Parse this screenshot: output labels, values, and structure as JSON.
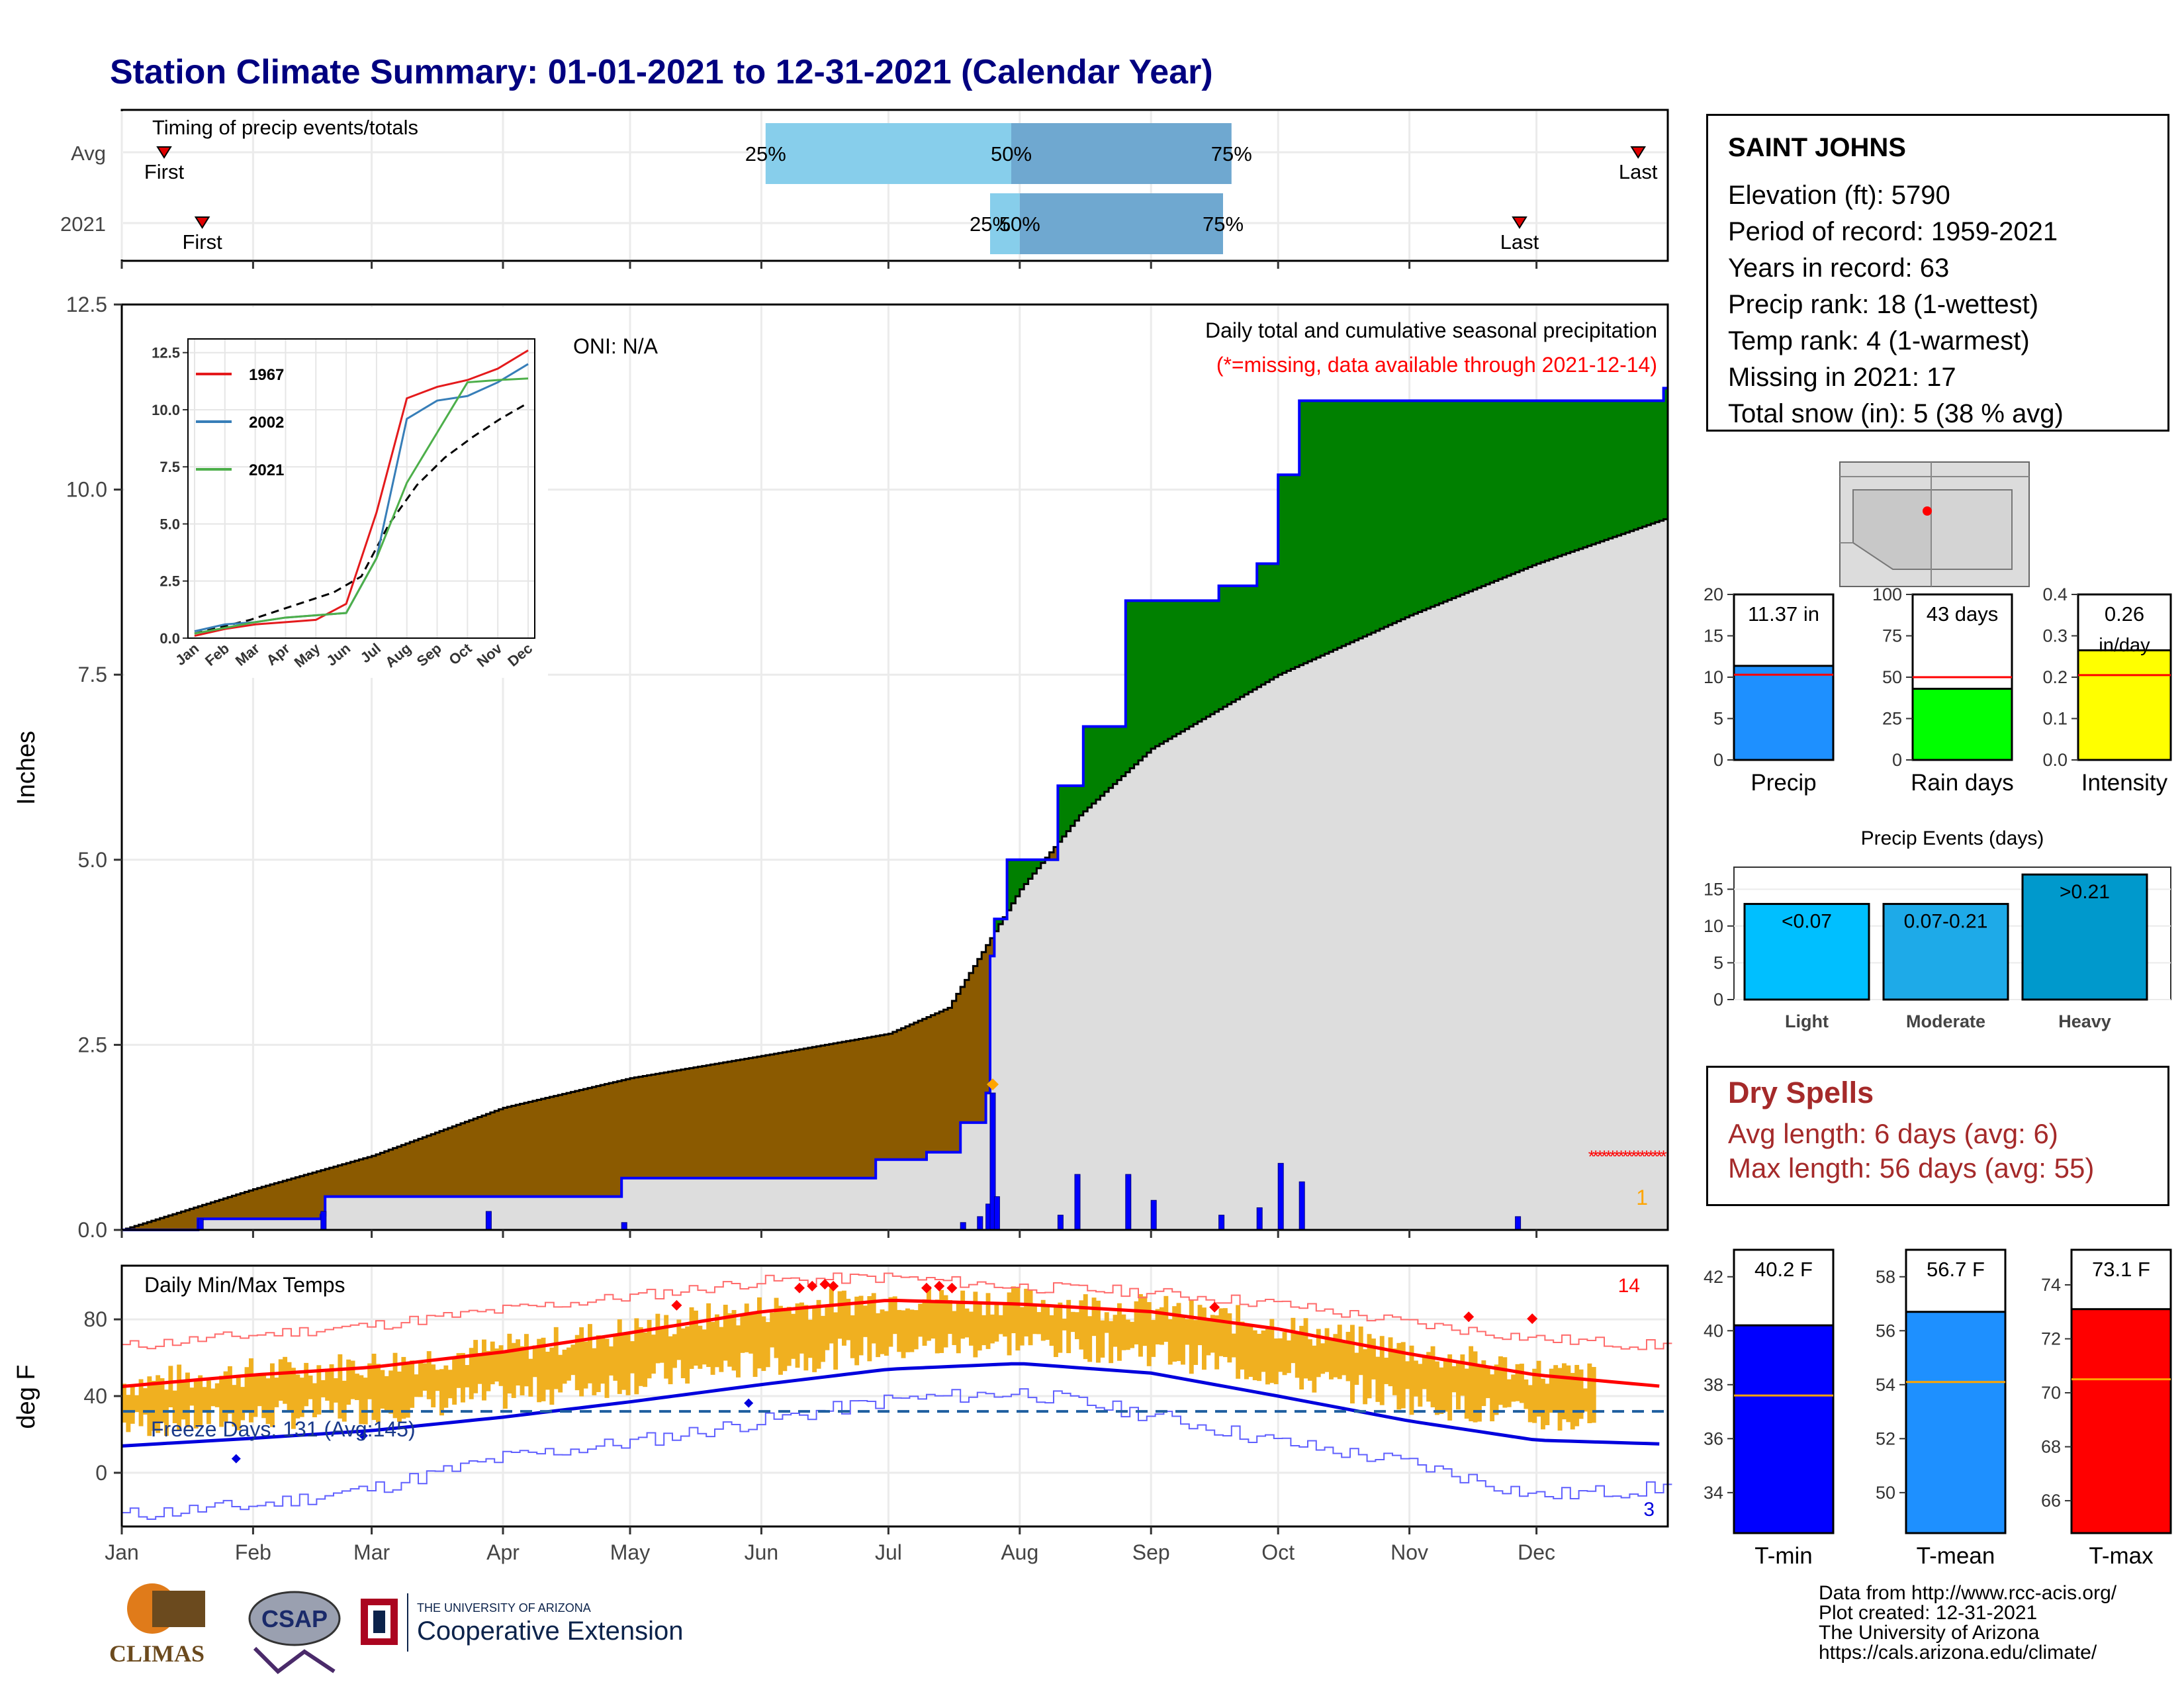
{
  "title": "Station Climate Summary: 01-01-2021 to 12-31-2021 (Calendar Year)",
  "colors": {
    "title": "#000080",
    "cum_2021": "#0000ff",
    "cum_avg_fill": "#dddddd",
    "surplus": "#008000",
    "deficit": "#8b5a00",
    "temp_bars": "#f0b020",
    "tmax_normal": "#ff0000",
    "tmin_normal": "#0000dd"
  },
  "timing": {
    "title": "Timing of precip events/totals",
    "rows": [
      "Avg",
      "2021"
    ],
    "first_label": "First",
    "last_label": "Last",
    "avg": {
      "first_doy": 10,
      "last_doy": 358,
      "p25_doy": 152,
      "p50_doy": 210,
      "p75_doy": 262
    },
    "y2021": {
      "first_doy": 19,
      "last_doy": 330,
      "p25_doy": 205,
      "p50_doy": 212,
      "p75_doy": 260
    },
    "labels": {
      "p25": "25%",
      "p50": "50%",
      "p75": "75%"
    }
  },
  "precip_chart": {
    "ylabel": "Inches",
    "ylim": [
      0,
      12.5
    ],
    "yticks": [
      "0.0",
      "2.5",
      "5.0",
      "7.5",
      "10.0",
      "12.5"
    ],
    "oni": "ONI: N/A",
    "subtitle": "Daily total and cumulative seasonal precipitation",
    "missing_note": "(*=missing, data available through 2021-12-14)",
    "missing_count": "1"
  },
  "inset": {
    "yticks": [
      "0.0",
      "2.5",
      "5.0",
      "7.5",
      "10.0",
      "12.5"
    ],
    "months": [
      "Jan",
      "Feb",
      "Mar",
      "Apr",
      "May",
      "Jun",
      "Jul",
      "Aug",
      "Sep",
      "Oct",
      "Nov",
      "Dec"
    ],
    "legend": [
      "1967",
      "2002",
      "2021"
    ]
  },
  "temp_chart": {
    "ylabel": "deg F",
    "title": "Daily Min/Max Temps",
    "yticks": [
      "0",
      "40",
      "80"
    ],
    "freeze_label": "Freeze Days: 131 (Avg:145)",
    "max_records": "14",
    "min_records": "3"
  },
  "months": [
    "Jan",
    "Feb",
    "Mar",
    "Apr",
    "May",
    "Jun",
    "Jul",
    "Aug",
    "Sep",
    "Oct",
    "Nov",
    "Dec"
  ],
  "station": {
    "name": "SAINT JOHNS",
    "lines": [
      "Elevation (ft): 5790",
      "Period of record: 1959-2021",
      "Years in record: 63",
      "Precip rank: 18 (1-wettest)",
      "Temp rank: 4 (1-warmest)",
      "Missing in 2021: 17",
      "Total snow (in): 5 (38 % avg)"
    ]
  },
  "gauges": {
    "precip": {
      "label": "Precip",
      "value_text": "11.37 in",
      "value": 11.37,
      "avg": 10.3,
      "ylim": [
        0,
        20
      ],
      "ticks": [
        "0",
        "5",
        "10",
        "15",
        "20"
      ],
      "color": "#1e90ff"
    },
    "raindays": {
      "label": "Rain days",
      "value_text": "43 days",
      "value": 43,
      "avg": 50,
      "ylim": [
        0,
        100
      ],
      "ticks": [
        "0",
        "25",
        "50",
        "75",
        "100"
      ],
      "color": "#00ff00"
    },
    "intensity": {
      "label": "Intensity",
      "value_text": "0.26",
      "unit_text": "in/day",
      "value": 0.265,
      "avg": 0.205,
      "ylim": [
        0,
        0.4
      ],
      "ticks": [
        "0.0",
        "0.1",
        "0.2",
        "0.3",
        "0.4"
      ],
      "color": "#ffff00"
    }
  },
  "events": {
    "title": "Precip Events (days)",
    "ticks": [
      "0",
      "5",
      "10",
      "15"
    ],
    "ylim": [
      0,
      18
    ],
    "bars": [
      {
        "name": "Light",
        "label": "<0.07",
        "value": 13,
        "color": "#00bfff"
      },
      {
        "name": "Moderate",
        "label": "0.07-0.21",
        "value": 13,
        "color": "#1eaae8"
      },
      {
        "name": "Heavy",
        "label": ">0.21",
        "value": 17,
        "color": "#0099cc"
      }
    ]
  },
  "dry_spells": {
    "title": "Dry Spells",
    "avg_length": "Avg length: 6 days (avg: 6)",
    "max_length": "Max length: 56 days (avg: 55)"
  },
  "temp_gauges": {
    "tmin": {
      "label": "T-min",
      "value_text": "40.2 F",
      "value": 40.2,
      "avg": 37.6,
      "ylim": [
        32.5,
        43
      ],
      "ticks": [
        "34",
        "36",
        "38",
        "40",
        "42"
      ],
      "color": "#0000ff"
    },
    "tmean": {
      "label": "T-mean",
      "value_text": "56.7 F",
      "value": 56.7,
      "avg": 54.1,
      "ylim": [
        48.5,
        59
      ],
      "ticks": [
        "50",
        "52",
        "54",
        "56",
        "58"
      ],
      "color": "#1e90ff"
    },
    "tmax": {
      "label": "T-max",
      "value_text": "73.1 F",
      "value": 73.1,
      "avg": 70.5,
      "ylim": [
        64.8,
        75.3
      ],
      "ticks": [
        "66",
        "68",
        "70",
        "72",
        "74"
      ],
      "color": "#ff0000"
    }
  },
  "credits": [
    "Data from http://www.rcc-acis.org/",
    "Plot created: 12-31-2021",
    "The University of Arizona",
    "https://cals.arizona.edu/climate/"
  ],
  "logos": {
    "climas": "CLIMAS",
    "csap": "CSAP",
    "ua_small": "THE UNIVERSITY OF ARIZONA",
    "ua_big": "Cooperative Extension"
  },
  "chart_data": [
    {
      "type": "area",
      "title": "Daily total and cumulative seasonal precipitation",
      "ylabel": "Inches",
      "ylim": [
        0,
        12.5
      ],
      "series": [
        {
          "name": "2021 cumulative",
          "x": [
            "01-01",
            "01-19",
            "02-17",
            "02-18",
            "03-28",
            "04-29",
            "06-28",
            "07-10",
            "07-18",
            "07-24",
            "07-25",
            "07-26",
            "07-29",
            "08-10",
            "08-16",
            "08-26",
            "09-17",
            "09-26",
            "10-01",
            "10-06",
            "12-31"
          ],
          "values": [
            0,
            0.15,
            0.2,
            0.45,
            0.45,
            0.7,
            0.95,
            1.05,
            1.45,
            1.85,
            3.7,
            4.2,
            5.0,
            6.0,
            6.8,
            8.5,
            8.7,
            9.0,
            10.2,
            11.2,
            11.37
          ]
        },
        {
          "name": "Average cumulative",
          "x": [
            "01-01",
            "02-01",
            "03-01",
            "04-01",
            "05-01",
            "06-01",
            "07-01",
            "07-15",
            "08-01",
            "08-15",
            "09-01",
            "10-01",
            "11-01",
            "12-01",
            "12-31"
          ],
          "values": [
            0,
            0.55,
            1.0,
            1.65,
            2.05,
            2.35,
            2.65,
            3.0,
            4.6,
            5.6,
            6.5,
            7.5,
            8.3,
            9.0,
            9.6
          ]
        }
      ],
      "daily_precip": [
        {
          "x": "01-19",
          "value": 0.15
        },
        {
          "x": "02-17",
          "value": 0.25
        },
        {
          "x": "03-28",
          "value": 0.25
        },
        {
          "x": "04-29",
          "value": 0.1
        },
        {
          "x": "07-18",
          "value": 0.1
        },
        {
          "x": "07-22",
          "value": 0.18
        },
        {
          "x": "07-24",
          "value": 0.35
        },
        {
          "x": "07-25",
          "value": 1.85
        },
        {
          "x": "07-26",
          "value": 0.45
        },
        {
          "x": "08-10",
          "value": 0.2
        },
        {
          "x": "08-14",
          "value": 0.75
        },
        {
          "x": "08-26",
          "value": 0.75
        },
        {
          "x": "09-01",
          "value": 0.4
        },
        {
          "x": "09-17",
          "value": 0.2
        },
        {
          "x": "09-26",
          "value": 0.3
        },
        {
          "x": "10-01",
          "value": 0.9
        },
        {
          "x": "10-06",
          "value": 0.65
        },
        {
          "x": "11-26",
          "value": 0.18
        }
      ]
    },
    {
      "type": "line",
      "title": "Daily Min/Max Temps",
      "ylabel": "deg F",
      "ylim": [
        -28,
        108
      ],
      "x": [
        "01-01",
        "02-01",
        "03-01",
        "04-01",
        "05-01",
        "06-01",
        "07-01",
        "08-01",
        "09-01",
        "10-01",
        "11-01",
        "12-01",
        "12-31"
      ],
      "series": [
        {
          "name": "Normal max",
          "values": [
            45,
            51,
            55,
            63,
            73,
            84,
            90,
            88,
            84,
            75,
            62,
            51,
            45
          ]
        },
        {
          "name": "Normal min",
          "values": [
            14,
            18,
            22,
            29,
            37,
            46,
            54,
            57,
            52,
            40,
            27,
            17,
            15
          ]
        },
        {
          "name": "Record max",
          "values": [
            66,
            72,
            77,
            85,
            92,
            100,
            102,
            97,
            94,
            88,
            78,
            70,
            66
          ]
        },
        {
          "name": "Record min",
          "values": [
            -22,
            -17,
            -8,
            8,
            16,
            27,
            38,
            42,
            30,
            16,
            5,
            -12,
            -8
          ]
        }
      ],
      "freeze_line": 32
    },
    {
      "type": "line",
      "title": "",
      "x": [
        "Jan",
        "Feb",
        "Mar",
        "Apr",
        "May",
        "Jun",
        "Jul",
        "Aug",
        "Sep",
        "Oct",
        "Nov",
        "Dec"
      ],
      "ylim": [
        0,
        12.5
      ],
      "series": [
        {
          "name": "1967",
          "values": [
            0.1,
            0.4,
            0.6,
            0.7,
            0.8,
            1.5,
            5.5,
            10.5,
            11.0,
            11.3,
            11.8,
            12.6
          ]
        },
        {
          "name": "2002",
          "values": [
            0.3,
            0.6,
            0.7,
            0.9,
            1.0,
            1.1,
            3.5,
            9.6,
            10.4,
            10.6,
            11.2,
            12.0
          ]
        },
        {
          "name": "2021",
          "values": [
            0.2,
            0.45,
            0.7,
            0.9,
            1.0,
            1.1,
            3.5,
            6.8,
            9.0,
            11.2,
            11.3,
            11.37
          ]
        }
      ]
    }
  ]
}
